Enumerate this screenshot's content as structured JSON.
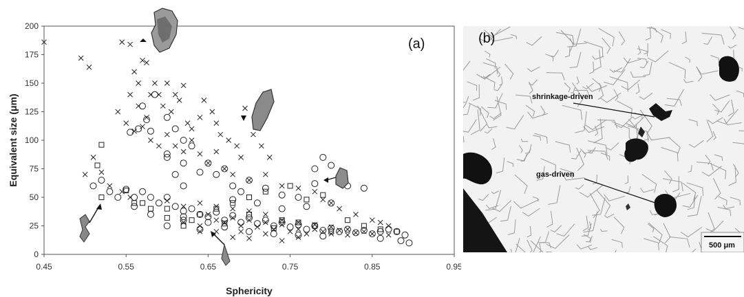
{
  "chart_data": {
    "type": "scatter",
    "panel_label": "(a)",
    "xlabel": "Sphericity",
    "ylabel": "Equivalent size (μm)",
    "xlim": [
      0.45,
      0.95
    ],
    "ylim": [
      0,
      200
    ],
    "x_ticks": [
      "0.45",
      "0.55",
      "0.65",
      "0.75",
      "0.85",
      "0.95"
    ],
    "y_ticks": [
      "0",
      "25",
      "50",
      "75",
      "100",
      "125",
      "150",
      "175",
      "200"
    ],
    "grid": false,
    "series": [
      {
        "marker": "x",
        "points": [
          [
            0.45,
            186
          ],
          [
            0.495,
            172
          ],
          [
            0.505,
            164
          ],
          [
            0.545,
            186
          ],
          [
            0.555,
            184
          ],
          [
            0.56,
            160
          ],
          [
            0.565,
            150
          ],
          [
            0.57,
            170
          ],
          [
            0.575,
            168
          ],
          [
            0.58,
            140
          ],
          [
            0.555,
            140
          ],
          [
            0.565,
            130
          ],
          [
            0.575,
            120
          ],
          [
            0.585,
            150
          ],
          [
            0.59,
            140
          ],
          [
            0.595,
            130
          ],
          [
            0.6,
            150
          ],
          [
            0.605,
            125
          ],
          [
            0.61,
            140
          ],
          [
            0.615,
            135
          ],
          [
            0.62,
            148
          ],
          [
            0.625,
            115
          ],
          [
            0.63,
            110
          ],
          [
            0.64,
            120
          ],
          [
            0.645,
            135
          ],
          [
            0.655,
            125
          ],
          [
            0.66,
            115
          ],
          [
            0.665,
            105
          ],
          [
            0.675,
            100
          ],
          [
            0.685,
            95
          ],
          [
            0.695,
            128
          ],
          [
            0.705,
            105
          ],
          [
            0.715,
            95
          ],
          [
            0.725,
            85
          ],
          [
            0.54,
            125
          ],
          [
            0.55,
            115
          ],
          [
            0.56,
            108
          ],
          [
            0.57,
            112
          ],
          [
            0.58,
            100
          ],
          [
            0.59,
            95
          ],
          [
            0.6,
            105
          ],
          [
            0.61,
            95
          ],
          [
            0.62,
            90
          ],
          [
            0.63,
            100
          ],
          [
            0.64,
            88
          ],
          [
            0.65,
            80
          ],
          [
            0.66,
            90
          ],
          [
            0.67,
            75
          ],
          [
            0.68,
            70
          ],
          [
            0.69,
            85
          ],
          [
            0.7,
            65
          ],
          [
            0.72,
            70
          ],
          [
            0.74,
            60
          ],
          [
            0.76,
            58
          ],
          [
            0.78,
            55
          ],
          [
            0.79,
            48
          ],
          [
            0.8,
            45
          ],
          [
            0.81,
            40
          ],
          [
            0.83,
            35
          ],
          [
            0.85,
            30
          ],
          [
            0.86,
            28
          ],
          [
            0.87,
            25
          ],
          [
            0.5,
            70
          ],
          [
            0.51,
            85
          ],
          [
            0.52,
            72
          ],
          [
            0.53,
            60
          ],
          [
            0.545,
            55
          ],
          [
            0.555,
            50
          ],
          [
            0.6,
            47
          ],
          [
            0.62,
            42
          ],
          [
            0.64,
            45
          ],
          [
            0.66,
            42
          ],
          [
            0.68,
            40
          ],
          [
            0.7,
            38
          ],
          [
            0.72,
            35
          ],
          [
            0.74,
            30
          ],
          [
            0.76,
            28
          ],
          [
            0.78,
            26
          ],
          [
            0.8,
            24
          ],
          [
            0.82,
            22
          ],
          [
            0.84,
            20
          ],
          [
            0.65,
            35
          ],
          [
            0.66,
            30
          ],
          [
            0.67,
            28
          ],
          [
            0.68,
            32
          ],
          [
            0.69,
            25
          ],
          [
            0.7,
            30
          ],
          [
            0.71,
            24
          ],
          [
            0.72,
            28
          ],
          [
            0.73,
            22
          ],
          [
            0.74,
            26
          ],
          [
            0.75,
            20
          ],
          [
            0.76,
            22
          ],
          [
            0.77,
            18
          ],
          [
            0.78,
            22
          ],
          [
            0.79,
            20
          ],
          [
            0.8,
            18
          ],
          [
            0.81,
            21
          ],
          [
            0.82,
            17
          ],
          [
            0.83,
            19
          ],
          [
            0.85,
            18
          ],
          [
            0.87,
            17
          ],
          [
            0.64,
            25
          ],
          [
            0.66,
            20
          ],
          [
            0.62,
            28
          ],
          [
            0.68,
            15
          ],
          [
            0.7,
            14
          ],
          [
            0.72,
            18
          ],
          [
            0.74,
            12
          ],
          [
            0.76,
            15
          ],
          [
            0.64,
            20
          ],
          [
            0.69,
            20
          ]
        ]
      },
      {
        "marker": "o",
        "points": [
          [
            0.51,
            60
          ],
          [
            0.52,
            65
          ],
          [
            0.53,
            55
          ],
          [
            0.54,
            50
          ],
          [
            0.55,
            57
          ],
          [
            0.56,
            50
          ],
          [
            0.555,
            107
          ],
          [
            0.565,
            110
          ],
          [
            0.57,
            130
          ],
          [
            0.575,
            118
          ],
          [
            0.58,
            108
          ],
          [
            0.585,
            140
          ],
          [
            0.6,
            120
          ],
          [
            0.61,
            110
          ],
          [
            0.62,
            100
          ],
          [
            0.63,
            95
          ],
          [
            0.6,
            85
          ],
          [
            0.61,
            70
          ],
          [
            0.62,
            60
          ],
          [
            0.64,
            72
          ],
          [
            0.65,
            80
          ],
          [
            0.66,
            70
          ],
          [
            0.67,
            75
          ],
          [
            0.68,
            60
          ],
          [
            0.69,
            55
          ],
          [
            0.7,
            65
          ],
          [
            0.72,
            58
          ],
          [
            0.74,
            52
          ],
          [
            0.76,
            50
          ],
          [
            0.78,
            75
          ],
          [
            0.79,
            85
          ],
          [
            0.8,
            78
          ],
          [
            0.78,
            62
          ],
          [
            0.82,
            60
          ],
          [
            0.84,
            58
          ],
          [
            0.57,
            55
          ],
          [
            0.58,
            50
          ],
          [
            0.59,
            45
          ],
          [
            0.6,
            50
          ],
          [
            0.61,
            42
          ],
          [
            0.62,
            38
          ],
          [
            0.63,
            40
          ],
          [
            0.64,
            35
          ],
          [
            0.65,
            33
          ],
          [
            0.66,
            37
          ],
          [
            0.67,
            30
          ],
          [
            0.68,
            34
          ],
          [
            0.69,
            28
          ],
          [
            0.7,
            32
          ],
          [
            0.71,
            27
          ],
          [
            0.72,
            30
          ],
          [
            0.73,
            25
          ],
          [
            0.74,
            28
          ],
          [
            0.75,
            24
          ],
          [
            0.76,
            26
          ],
          [
            0.77,
            22
          ],
          [
            0.78,
            25
          ],
          [
            0.79,
            21
          ],
          [
            0.8,
            23
          ],
          [
            0.81,
            20
          ],
          [
            0.82,
            22
          ],
          [
            0.83,
            19
          ],
          [
            0.84,
            21
          ],
          [
            0.85,
            18
          ],
          [
            0.86,
            20
          ],
          [
            0.87,
            22
          ],
          [
            0.88,
            20
          ],
          [
            0.89,
            17
          ],
          [
            0.895,
            10
          ],
          [
            0.885,
            12
          ],
          [
            0.86,
            14
          ],
          [
            0.58,
            35
          ],
          [
            0.6,
            25
          ],
          [
            0.62,
            30
          ],
          [
            0.64,
            22
          ],
          [
            0.65,
            28
          ],
          [
            0.67,
            24
          ],
          [
            0.7,
            20
          ],
          [
            0.73,
            18
          ],
          [
            0.76,
            17
          ],
          [
            0.79,
            16
          ],
          [
            0.8,
            45
          ],
          [
            0.77,
            42
          ],
          [
            0.74,
            40
          ],
          [
            0.71,
            45
          ],
          [
            0.68,
            48
          ],
          [
            0.56,
            42
          ],
          [
            0.6,
            88
          ],
          [
            0.62,
            80
          ],
          [
            0.62,
            33
          ]
        ]
      },
      {
        "marker": "s",
        "points": [
          [
            0.52,
            96
          ],
          [
            0.515,
            78
          ],
          [
            0.52,
            50
          ],
          [
            0.55,
            56
          ],
          [
            0.56,
            45
          ],
          [
            0.57,
            45
          ],
          [
            0.58,
            40
          ],
          [
            0.6,
            40
          ],
          [
            0.6,
            32
          ],
          [
            0.62,
            25
          ],
          [
            0.64,
            35
          ],
          [
            0.68,
            45
          ],
          [
            0.7,
            50
          ],
          [
            0.72,
            55
          ],
          [
            0.75,
            60
          ],
          [
            0.77,
            48
          ],
          [
            0.79,
            52
          ],
          [
            0.82,
            30
          ],
          [
            0.84,
            25
          ],
          [
            0.86,
            22
          ],
          [
            0.88,
            20
          ],
          [
            0.66,
            40
          ],
          [
            0.7,
            35
          ],
          [
            0.74,
            30
          ],
          [
            0.76,
            28
          ],
          [
            0.78,
            25
          ],
          [
            0.63,
            30
          ],
          [
            0.67,
            27
          ],
          [
            0.73,
            23
          ],
          [
            0.8,
            20
          ]
        ]
      }
    ]
  },
  "micrograph": {
    "panel_label": "(b)",
    "annotations": [
      "shrinkage-driven",
      "gas-driven"
    ],
    "scale_bar": "500 μm"
  }
}
